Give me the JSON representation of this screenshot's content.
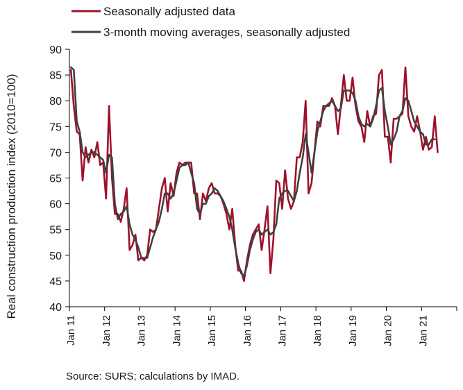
{
  "chart_data": {
    "type": "line",
    "ylabel": "Real construction production index (2010=100)",
    "xlabel": "",
    "ylim": [
      40,
      90
    ],
    "yticks": [
      "40",
      "45",
      "50",
      "55",
      "60",
      "65",
      "70",
      "75",
      "80",
      "85",
      "90"
    ],
    "x_tick_labels": [
      "Jan 11",
      "Jan 12",
      "Jan 13",
      "Jan 14",
      "Jan 15",
      "Jan 16",
      "Jan 17",
      "Jan 18",
      "Jan 19",
      "Jan 20",
      "Jan 21"
    ],
    "x_start": "Jan 2011",
    "x_frequency": "monthly",
    "legend_position": "top-left",
    "grid": false,
    "series": [
      {
        "name": "Seasonally adjusted data",
        "color": "#a0102a",
        "values": [
          86,
          79,
          74,
          73.5,
          64.5,
          71,
          68,
          70.5,
          69,
          72,
          67.5,
          68,
          61,
          79,
          65,
          58,
          58,
          56.5,
          59,
          63,
          51,
          52,
          54,
          49,
          49.5,
          49,
          50,
          55,
          54.5,
          55,
          59,
          63,
          65,
          58.5,
          64,
          61.5,
          66,
          68,
          67.5,
          68,
          68,
          68,
          62,
          62,
          57,
          62,
          60.5,
          63,
          64,
          62,
          62,
          61.5,
          60,
          58,
          55,
          59,
          52,
          47,
          47,
          45,
          49,
          52,
          54,
          55,
          56,
          51,
          55,
          59.5,
          46.5,
          53,
          64.5,
          64,
          59,
          66.5,
          61,
          59,
          60.5,
          69,
          69,
          72,
          80,
          62,
          64,
          70,
          76,
          75,
          79,
          79,
          79,
          80.5,
          79,
          73.5,
          79,
          85,
          80,
          80,
          84.5,
          79,
          76,
          75,
          72,
          78,
          75,
          77,
          77.5,
          85,
          86,
          73,
          73,
          68,
          76.5,
          76.5,
          77,
          77.5,
          86.5,
          77,
          75,
          74,
          77,
          74,
          70.5,
          73,
          70.5,
          71,
          77,
          70
        ]
      },
      {
        "name": "3-month moving averages, seasonally adjusted",
        "color": "#404040",
        "values": [
          86.5,
          86,
          76,
          74,
          70,
          69,
          69.5,
          70,
          70,
          69.5,
          69,
          68.5,
          66,
          69.5,
          69,
          60,
          57,
          58,
          58.5,
          59.5,
          56,
          54,
          53,
          51.5,
          49.5,
          49.5,
          49.5,
          51.5,
          53.5,
          55,
          56.5,
          59,
          62,
          62,
          61,
          62,
          64.5,
          67,
          67.5,
          67.5,
          68,
          66,
          64,
          59,
          58,
          60,
          60,
          61.5,
          62,
          63,
          62.5,
          61.5,
          60.5,
          59,
          57.5,
          55,
          51.5,
          48.5,
          46.5,
          46,
          48,
          51,
          53,
          54.5,
          55,
          54,
          54.5,
          55,
          54,
          54.5,
          56,
          61,
          62,
          62.5,
          62.5,
          61.5,
          60.5,
          62.5,
          66,
          69,
          73.5,
          70,
          66,
          70,
          74,
          76,
          78,
          79,
          79.5,
          80,
          79,
          78,
          78.5,
          82,
          82,
          82,
          81.5,
          80,
          77,
          75.5,
          75,
          75.5,
          75,
          76.5,
          79,
          82,
          82.5,
          78,
          75,
          71.5,
          72.5,
          74,
          77,
          78,
          80.5,
          80,
          78,
          76,
          75,
          74,
          73.5,
          71.5,
          71.5,
          72.5,
          72.5
        ]
      }
    ]
  },
  "source": "Source: SURS; calculations by IMAD."
}
